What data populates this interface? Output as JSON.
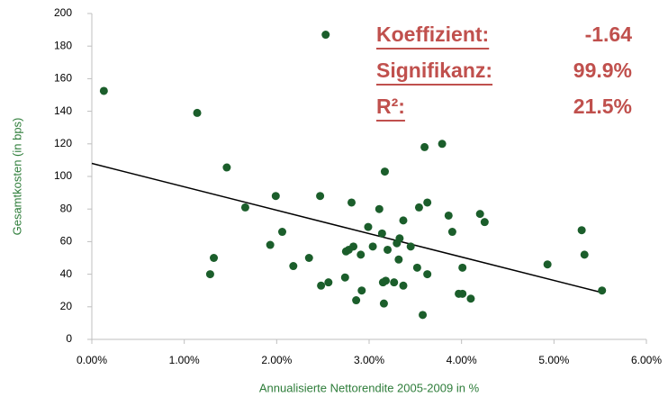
{
  "chart_data": {
    "type": "scatter",
    "x_label": "Annualisierte Nettorendite 2005-2009 in %",
    "y_label": "Gesamtkosten (in bps)",
    "color": "#1b5e2b",
    "xlim": [
      0,
      6
    ],
    "ylim": [
      0,
      200
    ],
    "xticks": [
      {
        "value": 0,
        "label": "0.00%"
      },
      {
        "value": 1,
        "label": "1.00%"
      },
      {
        "value": 2,
        "label": "2.00%"
      },
      {
        "value": 3,
        "label": "3.00%"
      },
      {
        "value": 4,
        "label": "4.00%"
      },
      {
        "value": 5,
        "label": "5.00%"
      },
      {
        "value": 6,
        "label": "6.00%"
      }
    ],
    "yticks": [
      0,
      20,
      40,
      60,
      80,
      100,
      120,
      140,
      160,
      180,
      200
    ],
    "x": [
      0.13,
      1.14,
      2.53,
      1.46,
      1.66,
      1.28,
      1.32,
      1.93,
      1.99,
      2.06,
      2.18,
      2.35,
      2.47,
      2.48,
      2.56,
      2.74,
      2.75,
      2.78,
      2.81,
      2.83,
      2.86,
      2.91,
      2.92,
      2.99,
      3.04,
      3.11,
      3.14,
      3.17,
      3.15,
      3.18,
      3.16,
      3.2,
      3.27,
      3.3,
      3.32,
      3.33,
      3.37,
      3.37,
      3.45,
      3.52,
      3.54,
      3.58,
      3.6,
      3.63,
      3.63,
      3.79,
      3.86,
      3.9,
      3.97,
      4.01,
      4.01,
      4.1,
      4.2,
      4.25,
      4.93,
      5.3,
      5.33,
      5.52
    ],
    "values": [
      152.5,
      139,
      187,
      105.5,
      81,
      40,
      50,
      58,
      88,
      66,
      45,
      50,
      88,
      33,
      35,
      38,
      54,
      55,
      84,
      57,
      24,
      52,
      30,
      69,
      57,
      80,
      65,
      103,
      35,
      36,
      22,
      55,
      35,
      59,
      49,
      62,
      73,
      33,
      57,
      44,
      81,
      15,
      118,
      84,
      40,
      120,
      76,
      66,
      28,
      28,
      44,
      25,
      77,
      72,
      46,
      67,
      52,
      30
    ],
    "trendline": {
      "x": [
        0,
        5.5
      ],
      "y": [
        108,
        29
      ]
    },
    "annotations": [
      {
        "label": "Koeffizient:",
        "value": "-1.64"
      },
      {
        "label": "Signifikanz:",
        "value": "99.9%"
      },
      {
        "label": "R²:",
        "value": "21.5%"
      }
    ]
  }
}
